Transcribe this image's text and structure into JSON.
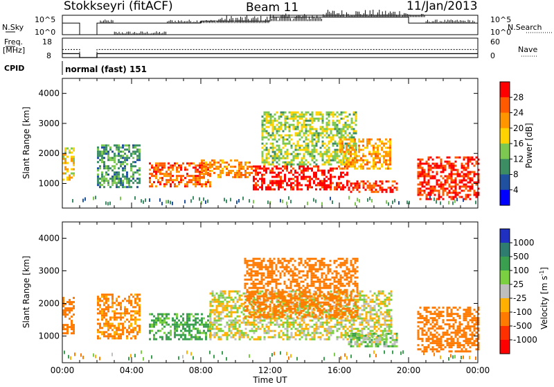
{
  "header": {
    "site": "Stokkseyri (fitACF)",
    "beam": "Beam 11",
    "date": "11/Jan/2013"
  },
  "nsky_panel": {
    "left_label": "N.Sky",
    "left_ticks": [
      "10^5",
      "10^0"
    ],
    "right_label": "N.Search",
    "right_ticks": [
      "10^5",
      "10^0"
    ]
  },
  "freq_panel": {
    "left_label_1": "Freq.",
    "left_label_2": "[MHz]",
    "left_ticks": [
      "18",
      "8"
    ],
    "right_label": "Nave",
    "right_ticks": [
      "60",
      "0"
    ]
  },
  "cpid": {
    "label": "CPID",
    "value": "normal (fast) 151"
  },
  "time_axis": {
    "ticks": [
      "00:00",
      "04:00",
      "08:00",
      "12:00",
      "16:00",
      "20:00",
      "00:00"
    ],
    "label": "Time UT"
  },
  "range_axis": {
    "label": "Slant Range [km]",
    "ticks": [
      "4000",
      "3000",
      "2000",
      "1000"
    ]
  },
  "power_scale": {
    "label": "Power [dB]",
    "ticks": [
      "28",
      "24",
      "20",
      "16",
      "12",
      "8",
      "4"
    ],
    "colors": [
      "#ff0000",
      "#ff5a00",
      "#ff9600",
      "#ffd200",
      "#7dc850",
      "#3c8c64",
      "#2050a0",
      "#0000ff"
    ]
  },
  "velocity_scale": {
    "label": "Velocity [m s",
    "label_sup": "-1",
    "label_end": "]",
    "ticks": [
      "1000",
      "500",
      "100",
      "25",
      "-25",
      "-100",
      "-500",
      "-1000"
    ],
    "colors": [
      "#2030c0",
      "#2e7d6e",
      "#3aa050",
      "#7ad040",
      "#bebebe",
      "#ffb000",
      "#ff7a00",
      "#ff3000",
      "#ff0000"
    ]
  },
  "chart_data": [
    {
      "type": "line",
      "title": "N.Sky / N.Search",
      "xlabel": "Time UT",
      "x": [
        "00:00",
        "01:00",
        "02:00",
        "04:00",
        "08:00",
        "12:00",
        "16:00",
        "20:00",
        "24:00"
      ],
      "series": [
        {
          "name": "N.Sky",
          "values": [
            30,
            0,
            30,
            30,
            35,
            45,
            45,
            30,
            40
          ]
        }
      ]
    },
    {
      "type": "line",
      "title": "Freq. [MHz] / Nave",
      "xlabel": "Time UT",
      "x": [
        "00:00",
        "01:00",
        "02:00",
        "24:00"
      ],
      "series": [
        {
          "name": "Freq.",
          "values": [
            10,
            8,
            10,
            10
          ]
        },
        {
          "name": "Nave",
          "values": [
            25,
            0,
            25,
            25
          ]
        }
      ]
    },
    {
      "type": "heatmap",
      "title": "Power [dB]",
      "xlabel": "Time UT",
      "ylabel": "Slant Range [km]",
      "xlim": [
        0,
        24
      ],
      "ylim": [
        180,
        4500
      ],
      "zlim": [
        0,
        30
      ],
      "regions": [
        {
          "t0": 0.0,
          "t1": 0.7,
          "r0": 1100,
          "r1": 2200,
          "p": 18
        },
        {
          "t0": 2.0,
          "t1": 4.5,
          "r0": 900,
          "r1": 2300,
          "p": 10
        },
        {
          "t0": 5.0,
          "t1": 8.5,
          "r0": 900,
          "r1": 1700,
          "p": 24
        },
        {
          "t0": 8.0,
          "t1": 11.0,
          "r0": 1200,
          "r1": 1800,
          "p": 22
        },
        {
          "t0": 11.0,
          "t1": 16.5,
          "r0": 800,
          "r1": 1600,
          "p": 28
        },
        {
          "t0": 11.5,
          "t1": 17.0,
          "r0": 1600,
          "r1": 3400,
          "p": 14
        },
        {
          "t0": 16.5,
          "t1": 19.3,
          "r0": 700,
          "r1": 1100,
          "p": 26
        },
        {
          "t0": 16.0,
          "t1": 19.0,
          "r0": 1500,
          "r1": 2500,
          "p": 20
        },
        {
          "t0": 20.5,
          "t1": 24.0,
          "r0": 500,
          "r1": 1900,
          "p": 27
        }
      ]
    },
    {
      "type": "heatmap",
      "title": "Velocity [m s-1]",
      "xlabel": "Time UT",
      "ylabel": "Slant Range [km]",
      "xlim": [
        0,
        24
      ],
      "ylim": [
        180,
        4500
      ],
      "zlim": [
        -1000,
        1000
      ],
      "regions": [
        {
          "t0": 0.0,
          "t1": 0.7,
          "r0": 1100,
          "r1": 2200,
          "v": -300
        },
        {
          "t0": 2.0,
          "t1": 4.5,
          "r0": 900,
          "r1": 2300,
          "v": -150
        },
        {
          "t0": 5.0,
          "t1": 8.5,
          "r0": 900,
          "r1": 1700,
          "v": 150
        },
        {
          "t0": 8.5,
          "t1": 19.0,
          "r0": 900,
          "r1": 2400,
          "v": 0
        },
        {
          "t0": 10.5,
          "t1": 17.0,
          "r0": 1600,
          "r1": 3400,
          "v": -200
        },
        {
          "t0": 16.5,
          "t1": 19.3,
          "r0": 700,
          "r1": 1100,
          "v": 60
        },
        {
          "t0": 20.5,
          "t1": 24.0,
          "r0": 500,
          "r1": 1900,
          "v": -400
        }
      ]
    }
  ]
}
